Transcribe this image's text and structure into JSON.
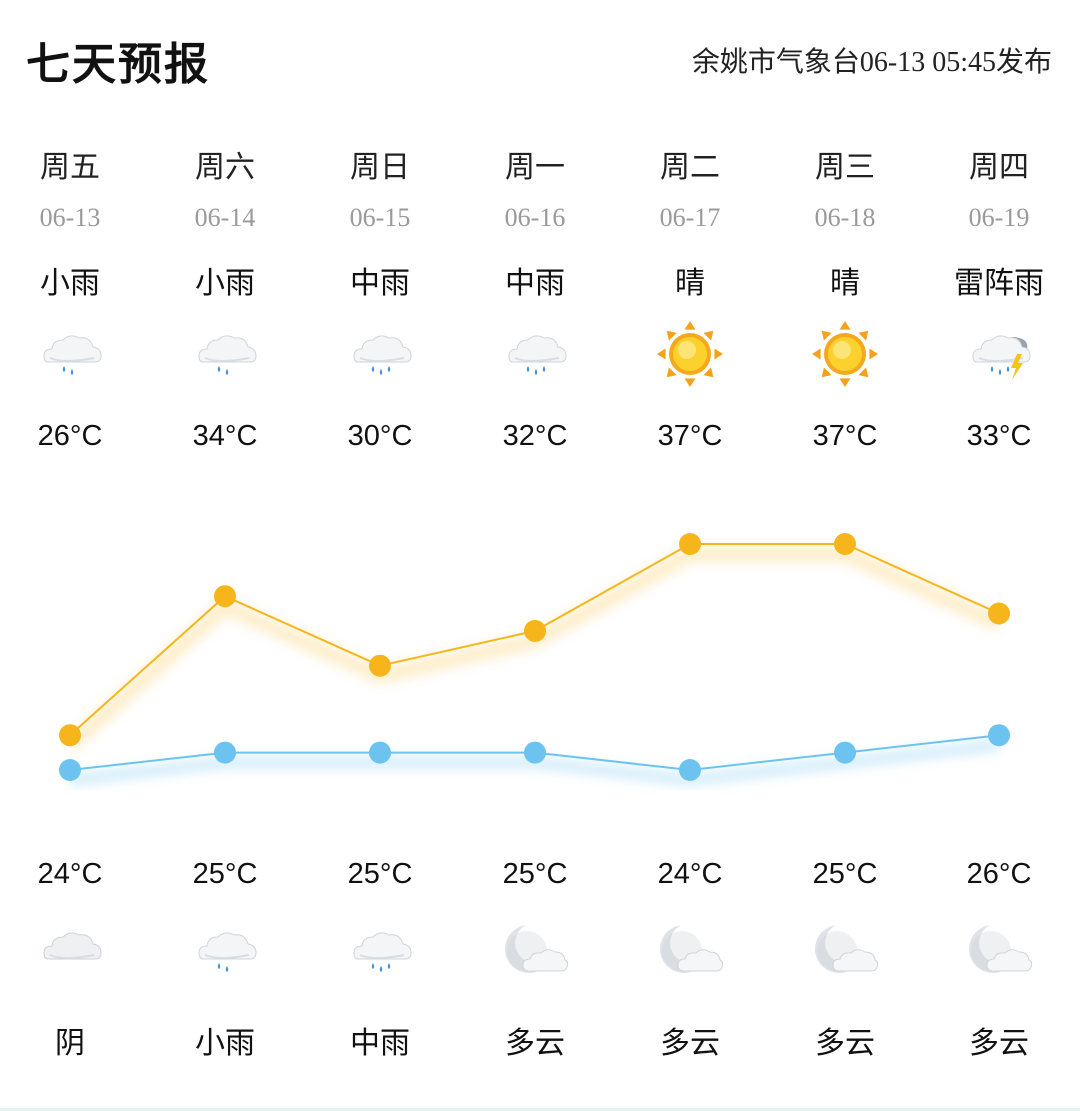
{
  "header": {
    "title": "七天预报",
    "source": "余姚市气象台06-13 05:45发布"
  },
  "days": [
    {
      "weekday": "周五",
      "date": "06-13",
      "day_condition": "小雨",
      "day_icon": "light-rain-icon",
      "high": "26°C",
      "low": "24°C",
      "night_icon": "overcast-icon",
      "night_condition": "阴"
    },
    {
      "weekday": "周六",
      "date": "06-14",
      "day_condition": "小雨",
      "day_icon": "light-rain-icon",
      "high": "34°C",
      "low": "25°C",
      "night_icon": "light-rain-icon",
      "night_condition": "小雨"
    },
    {
      "weekday": "周日",
      "date": "06-15",
      "day_condition": "中雨",
      "day_icon": "moderate-rain-icon",
      "high": "30°C",
      "low": "25°C",
      "night_icon": "moderate-rain-icon",
      "night_condition": "中雨"
    },
    {
      "weekday": "周一",
      "date": "06-16",
      "day_condition": "中雨",
      "day_icon": "moderate-rain-icon",
      "high": "32°C",
      "low": "25°C",
      "night_icon": "cloudy-night-icon",
      "night_condition": "多云"
    },
    {
      "weekday": "周二",
      "date": "06-17",
      "day_condition": "晴",
      "day_icon": "sunny-icon",
      "high": "37°C",
      "low": "24°C",
      "night_icon": "cloudy-night-icon",
      "night_condition": "多云"
    },
    {
      "weekday": "周三",
      "date": "06-18",
      "day_condition": "晴",
      "day_icon": "sunny-icon",
      "high": "37°C",
      "low": "25°C",
      "night_icon": "cloudy-night-icon",
      "night_condition": "多云"
    },
    {
      "weekday": "周四",
      "date": "06-19",
      "day_condition": "雷阵雨",
      "day_icon": "thunderstorm-icon",
      "high": "33°C",
      "low": "26°C",
      "night_icon": "cloudy-night-icon",
      "night_condition": "多云"
    }
  ],
  "chart_data": {
    "type": "line",
    "x": [
      "06-13",
      "06-14",
      "06-15",
      "06-16",
      "06-17",
      "06-18",
      "06-19"
    ],
    "series": [
      {
        "values": [
          26,
          34,
          30,
          32,
          37,
          37,
          33
        ],
        "color": "#f7b51c"
      },
      {
        "values": [
          24,
          25,
          25,
          25,
          24,
          25,
          26
        ],
        "color": "#6cc3f0"
      }
    ],
    "grid": false
  },
  "colors": {
    "high_line": "#f7b51c",
    "low_line": "#6cc3f0",
    "date_text": "#9a9a9a"
  }
}
